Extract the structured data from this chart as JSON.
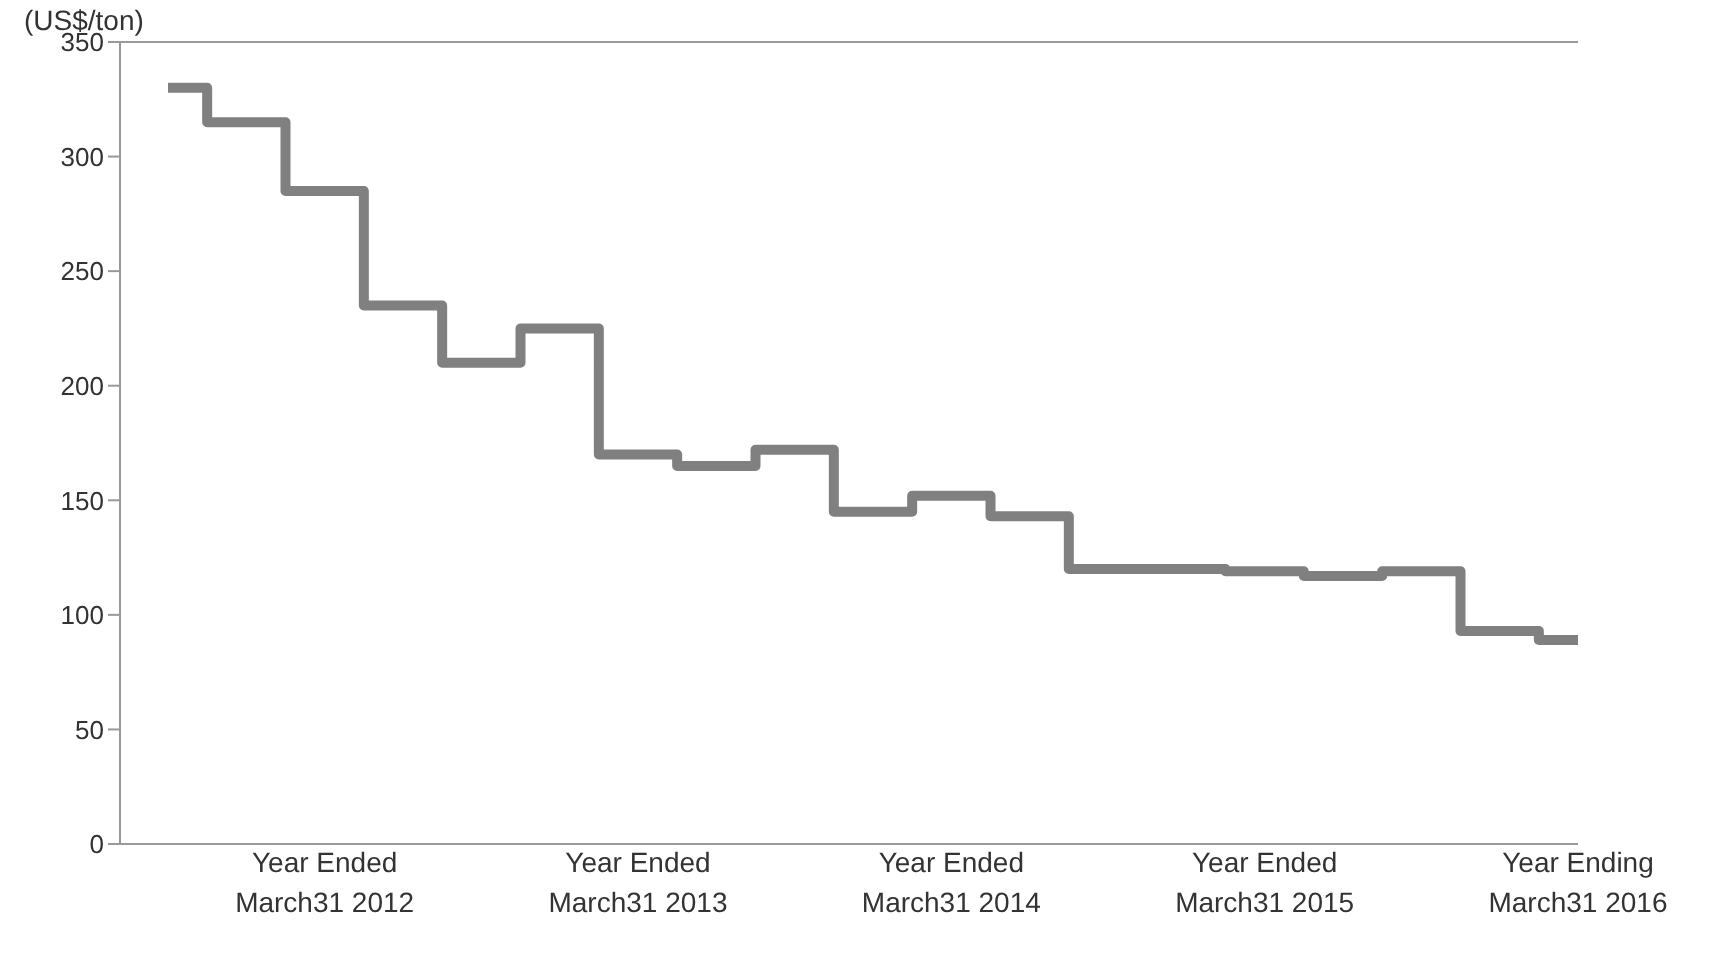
{
  "chart_data": {
    "type": "step",
    "ylabel": "(US$/ton)",
    "categories": [
      null,
      null,
      "Year Ended March31 2012",
      null,
      null,
      null,
      "Year Ended March31 2013",
      null,
      null,
      null,
      "Year Ended March31 2014",
      null,
      null,
      null,
      "Year Ended March31 2015",
      null,
      null,
      null,
      "Year Ending March31 2016"
    ],
    "series": [
      {
        "color": "#808080",
        "values": [
          330,
          315,
          285,
          235,
          210,
          225,
          170,
          165,
          172,
          145,
          152,
          143,
          120,
          120,
          119,
          117,
          119,
          93,
          89
        ]
      }
    ],
    "ylim": [
      0,
      350
    ],
    "yticks": [
      0,
      50,
      100,
      150,
      200,
      250,
      300,
      350
    ],
    "grid": false,
    "marker": "none",
    "line_style": "solid"
  }
}
